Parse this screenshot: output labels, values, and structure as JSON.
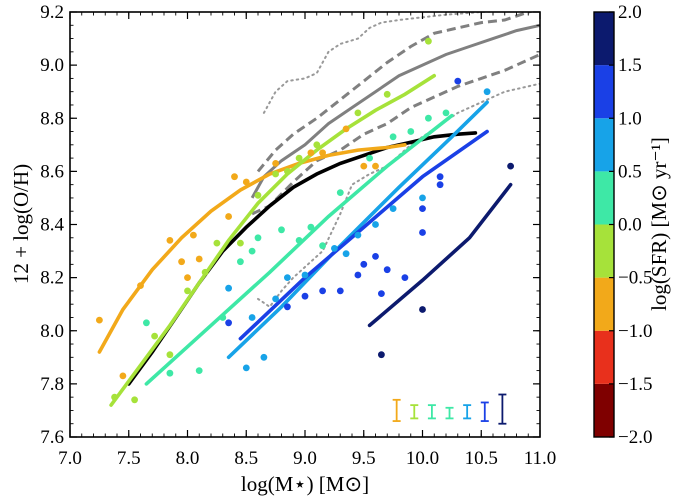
{
  "chart_data": {
    "type": "scatter",
    "xlabel": "log(M⋆) [M⊙]",
    "ylabel": "12 + log(O/H)",
    "colorbar_label": "log(SFR) [M⊙ yr⁻¹]",
    "xlim": [
      7.0,
      11.0
    ],
    "ylim": [
      7.6,
      9.2
    ],
    "x_ticks": [
      7.0,
      7.5,
      8.0,
      8.5,
      9.0,
      9.5,
      10.0,
      10.5,
      11.0
    ],
    "x_tick_labels": [
      "7.0",
      "7.5",
      "8.0",
      "8.5",
      "9.0",
      "9.5",
      "10.0",
      "10.5",
      "11.0"
    ],
    "y_ticks": [
      7.6,
      7.8,
      8.0,
      8.2,
      8.4,
      8.6,
      8.8,
      9.0,
      9.2
    ],
    "y_tick_labels": [
      "7.6",
      "7.8",
      "8.0",
      "8.2",
      "8.4",
      "8.6",
      "8.8",
      "9.0",
      "9.2"
    ],
    "colorbar": {
      "range": [
        -2.0,
        2.0
      ],
      "ticks": [
        -2.0,
        -1.5,
        -1.0,
        -0.5,
        0.0,
        0.5,
        1.0,
        1.5,
        2.0
      ],
      "tick_labels": [
        "−2.0",
        "−1.5",
        "−1.0",
        "−0.5",
        "0.0",
        "0.5",
        "1.0",
        "1.5",
        "2.0"
      ],
      "bins": [
        {
          "from": -2.0,
          "to": -1.5,
          "color": "#7f0000"
        },
        {
          "from": -1.5,
          "to": -1.0,
          "color": "#e8301c"
        },
        {
          "from": -1.0,
          "to": -0.5,
          "color": "#f2a91a"
        },
        {
          "from": -0.5,
          "to": 0.0,
          "color": "#a6e23a"
        },
        {
          "from": 0.0,
          "to": 0.5,
          "color": "#3ee8a6"
        },
        {
          "from": 0.5,
          "to": 1.0,
          "color": "#17a3e8"
        },
        {
          "from": 1.0,
          "to": 1.5,
          "color": "#1a40e6"
        },
        {
          "from": 1.5,
          "to": 2.0,
          "color": "#0c1a6e"
        }
      ]
    },
    "reference_curves": [
      {
        "style": "solid",
        "color": "#808080",
        "points": [
          [
            8.55,
            8.5
          ],
          [
            8.65,
            8.58
          ],
          [
            8.8,
            8.64
          ],
          [
            9.0,
            8.7
          ],
          [
            9.2,
            8.78
          ],
          [
            9.4,
            8.84
          ],
          [
            9.6,
            8.9
          ],
          [
            9.8,
            8.96
          ],
          [
            10.0,
            9.0
          ],
          [
            10.2,
            9.04
          ],
          [
            10.4,
            9.07
          ],
          [
            10.6,
            9.1
          ],
          [
            10.8,
            9.13
          ],
          [
            11.0,
            9.15
          ]
        ]
      },
      {
        "style": "dashed",
        "color": "#808080",
        "points": [
          [
            8.6,
            8.6
          ],
          [
            8.75,
            8.68
          ],
          [
            8.9,
            8.74
          ],
          [
            9.1,
            8.8
          ],
          [
            9.3,
            8.87
          ],
          [
            9.5,
            8.94
          ],
          [
            9.7,
            9.01
          ],
          [
            9.9,
            9.07
          ],
          [
            10.1,
            9.12
          ],
          [
            10.3,
            9.14
          ],
          [
            10.5,
            9.16
          ],
          [
            10.7,
            9.17
          ],
          [
            10.9,
            9.2
          ],
          [
            11.0,
            9.21
          ]
        ]
      },
      {
        "style": "dashed",
        "color": "#808080",
        "points": [
          [
            8.55,
            8.44
          ],
          [
            8.7,
            8.47
          ],
          [
            8.9,
            8.56
          ],
          [
            9.1,
            8.64
          ],
          [
            9.3,
            8.68
          ],
          [
            9.5,
            8.74
          ],
          [
            9.7,
            8.78
          ],
          [
            9.9,
            8.84
          ],
          [
            10.1,
            8.88
          ],
          [
            10.3,
            8.92
          ],
          [
            10.5,
            8.95
          ],
          [
            10.7,
            8.98
          ],
          [
            11.0,
            9.04
          ]
        ]
      },
      {
        "style": "dotted",
        "color": "#999999",
        "points": [
          [
            8.65,
            8.82
          ],
          [
            8.75,
            8.9
          ],
          [
            8.85,
            8.94
          ],
          [
            9.0,
            8.95
          ],
          [
            9.1,
            8.97
          ],
          [
            9.2,
            9.05
          ],
          [
            9.3,
            9.08
          ],
          [
            9.45,
            9.1
          ],
          [
            9.55,
            9.14
          ],
          [
            9.65,
            9.16
          ],
          [
            9.8,
            9.17
          ],
          [
            10.0,
            9.18
          ],
          [
            10.2,
            9.19
          ],
          [
            10.5,
            9.2
          ],
          [
            11.0,
            9.21
          ]
        ]
      },
      {
        "style": "dotted",
        "color": "#999999",
        "points": [
          [
            8.6,
            8.12
          ],
          [
            8.7,
            8.09
          ],
          [
            8.8,
            8.15
          ],
          [
            8.9,
            8.2
          ],
          [
            9.0,
            8.24
          ],
          [
            9.15,
            8.3
          ],
          [
            9.3,
            8.44
          ],
          [
            9.4,
            8.55
          ],
          [
            9.55,
            8.59
          ],
          [
            9.7,
            8.62
          ],
          [
            9.9,
            8.7
          ],
          [
            10.1,
            8.76
          ],
          [
            10.3,
            8.82
          ],
          [
            10.5,
            8.86
          ],
          [
            10.7,
            8.9
          ],
          [
            11.0,
            8.93
          ]
        ]
      }
    ],
    "series": [
      {
        "color": "#000000",
        "points": [
          [
            7.5,
            7.8
          ],
          [
            7.7,
            7.92
          ],
          [
            7.9,
            8.05
          ],
          [
            8.1,
            8.18
          ],
          [
            8.3,
            8.3
          ],
          [
            8.5,
            8.39
          ],
          [
            8.7,
            8.47
          ],
          [
            8.9,
            8.54
          ],
          [
            9.1,
            8.59
          ],
          [
            9.3,
            8.63
          ],
          [
            9.5,
            8.66
          ],
          [
            9.7,
            8.69
          ],
          [
            9.9,
            8.71
          ],
          [
            10.1,
            8.73
          ],
          [
            10.3,
            8.74
          ],
          [
            10.45,
            8.745
          ]
        ]
      },
      {
        "bin": "-1.0 to -0.5",
        "color": "#f2a91a",
        "points": [
          [
            7.25,
            7.92
          ],
          [
            7.45,
            8.08
          ],
          [
            7.7,
            8.23
          ],
          [
            7.95,
            8.35
          ],
          [
            8.2,
            8.45
          ],
          [
            8.45,
            8.53
          ],
          [
            8.7,
            8.59
          ],
          [
            8.95,
            8.63
          ],
          [
            9.2,
            8.66
          ],
          [
            9.45,
            8.68
          ],
          [
            9.7,
            8.69
          ],
          [
            9.85,
            8.7
          ]
        ]
      },
      {
        "bin": "-0.5 to 0.0",
        "color": "#a6e23a",
        "points": [
          [
            7.35,
            7.72
          ],
          [
            7.6,
            7.87
          ],
          [
            7.85,
            8.02
          ],
          [
            8.1,
            8.18
          ],
          [
            8.35,
            8.34
          ],
          [
            8.6,
            8.48
          ],
          [
            8.85,
            8.59
          ],
          [
            9.1,
            8.68
          ],
          [
            9.35,
            8.76
          ],
          [
            9.6,
            8.83
          ],
          [
            9.85,
            8.89
          ],
          [
            10.1,
            8.96
          ]
        ]
      },
      {
        "bin": "0.0 to 0.5",
        "color": "#3ee8a6",
        "points": [
          [
            7.65,
            7.8
          ],
          [
            8.2,
            8.02
          ],
          [
            8.7,
            8.22
          ],
          [
            9.2,
            8.43
          ],
          [
            9.7,
            8.62
          ],
          [
            10.25,
            8.81
          ]
        ]
      },
      {
        "bin": "0.5 to 1.0",
        "color": "#17a3e8",
        "points": [
          [
            8.35,
            7.9
          ],
          [
            8.8,
            8.09
          ],
          [
            9.3,
            8.32
          ],
          [
            9.8,
            8.54
          ],
          [
            10.25,
            8.73
          ],
          [
            10.55,
            8.86
          ]
        ]
      },
      {
        "bin": "1.0 to 1.5",
        "color": "#1a40e6",
        "points": [
          [
            8.45,
            7.97
          ],
          [
            9.0,
            8.2
          ],
          [
            9.5,
            8.39
          ],
          [
            10.0,
            8.58
          ],
          [
            10.55,
            8.75
          ]
        ]
      },
      {
        "bin": "1.5 to 2.0",
        "color": "#0c1a6e",
        "points": [
          [
            9.55,
            8.02
          ],
          [
            10.0,
            8.19
          ],
          [
            10.4,
            8.35
          ],
          [
            10.75,
            8.55
          ]
        ]
      }
    ],
    "scatter_points": [
      {
        "bin": "-1.0 to -0.5",
        "color": "#f2a91a",
        "points": [
          [
            7.25,
            8.04
          ],
          [
            7.45,
            7.83
          ],
          [
            7.6,
            8.17
          ],
          [
            7.85,
            8.34
          ],
          [
            7.95,
            8.26
          ],
          [
            8.0,
            8.2
          ],
          [
            8.05,
            8.36
          ],
          [
            8.1,
            8.27
          ],
          [
            8.35,
            8.43
          ],
          [
            8.4,
            8.58
          ],
          [
            8.5,
            8.56
          ],
          [
            8.75,
            8.63
          ],
          [
            9.05,
            8.67
          ],
          [
            9.15,
            8.67
          ],
          [
            9.35,
            8.76
          ],
          [
            9.5,
            8.62
          ],
          [
            9.6,
            8.62
          ]
        ]
      },
      {
        "bin": "-0.5 to 0.0",
        "color": "#a6e23a",
        "points": [
          [
            7.38,
            7.75
          ],
          [
            7.55,
            7.74
          ],
          [
            7.72,
            7.98
          ],
          [
            7.85,
            7.91
          ],
          [
            8.0,
            8.15
          ],
          [
            8.15,
            8.22
          ],
          [
            8.25,
            8.33
          ],
          [
            8.45,
            8.33
          ],
          [
            8.6,
            8.51
          ],
          [
            8.75,
            8.59
          ],
          [
            8.85,
            8.6
          ],
          [
            8.95,
            8.65
          ],
          [
            9.1,
            8.7
          ],
          [
            9.45,
            8.82
          ],
          [
            9.7,
            8.89
          ],
          [
            10.05,
            9.09
          ]
        ]
      },
      {
        "bin": "0.0 to 0.5",
        "color": "#3ee8a6",
        "points": [
          [
            7.65,
            8.03
          ],
          [
            7.85,
            7.84
          ],
          [
            8.1,
            7.85
          ],
          [
            8.3,
            8.05
          ],
          [
            8.45,
            8.26
          ],
          [
            8.55,
            8.3
          ],
          [
            8.6,
            8.35
          ],
          [
            8.8,
            8.38
          ],
          [
            8.95,
            8.34
          ],
          [
            9.05,
            8.39
          ],
          [
            9.15,
            8.32
          ],
          [
            9.3,
            8.52
          ],
          [
            9.55,
            8.65
          ],
          [
            9.75,
            8.73
          ],
          [
            9.9,
            8.75
          ],
          [
            10.05,
            8.8
          ],
          [
            10.2,
            8.82
          ]
        ]
      },
      {
        "bin": "0.5 to 1.0",
        "color": "#17a3e8",
        "points": [
          [
            8.35,
            8.16
          ],
          [
            8.5,
            7.86
          ],
          [
            8.55,
            8.05
          ],
          [
            8.65,
            7.9
          ],
          [
            8.75,
            8.12
          ],
          [
            8.85,
            8.2
          ],
          [
            9.0,
            8.21
          ],
          [
            9.25,
            8.31
          ],
          [
            9.35,
            8.29
          ],
          [
            9.45,
            8.36
          ],
          [
            9.6,
            8.4
          ],
          [
            9.75,
            8.46
          ],
          [
            10.0,
            8.5
          ],
          [
            10.55,
            8.9
          ]
        ]
      },
      {
        "bin": "1.0 to 1.5",
        "color": "#1a40e6",
        "points": [
          [
            8.35,
            8.03
          ],
          [
            8.85,
            8.09
          ],
          [
            9.0,
            8.13
          ],
          [
            9.15,
            8.15
          ],
          [
            9.3,
            8.15
          ],
          [
            9.45,
            8.21
          ],
          [
            9.5,
            8.25
          ],
          [
            9.6,
            8.28
          ],
          [
            9.65,
            8.14
          ],
          [
            9.7,
            8.23
          ],
          [
            9.85,
            8.2
          ],
          [
            10.0,
            8.37
          ],
          [
            10.0,
            8.46
          ],
          [
            10.15,
            8.58
          ],
          [
            10.15,
            8.55
          ],
          [
            10.3,
            8.94
          ]
        ]
      },
      {
        "bin": "1.5 to 2.0",
        "color": "#0c1a6e",
        "points": [
          [
            9.65,
            7.91
          ],
          [
            10.0,
            8.08
          ],
          [
            10.75,
            8.62
          ]
        ]
      }
    ],
    "error_bars": [
      {
        "x": 9.78,
        "y_low": 7.66,
        "y_high": 7.74,
        "color": "#f2a91a"
      },
      {
        "x": 9.93,
        "y_low": 7.67,
        "y_high": 7.72,
        "color": "#a6e23a"
      },
      {
        "x": 10.08,
        "y_low": 7.67,
        "y_high": 7.72,
        "color": "#3ee8a6"
      },
      {
        "x": 10.23,
        "y_low": 7.67,
        "y_high": 7.71,
        "color": "#3ee8a6"
      },
      {
        "x": 10.38,
        "y_low": 7.67,
        "y_high": 7.72,
        "color": "#17a3e8"
      },
      {
        "x": 10.53,
        "y_low": 7.66,
        "y_high": 7.73,
        "color": "#1a40e6"
      },
      {
        "x": 10.68,
        "y_low": 7.65,
        "y_high": 7.76,
        "color": "#0c1a6e"
      }
    ]
  }
}
